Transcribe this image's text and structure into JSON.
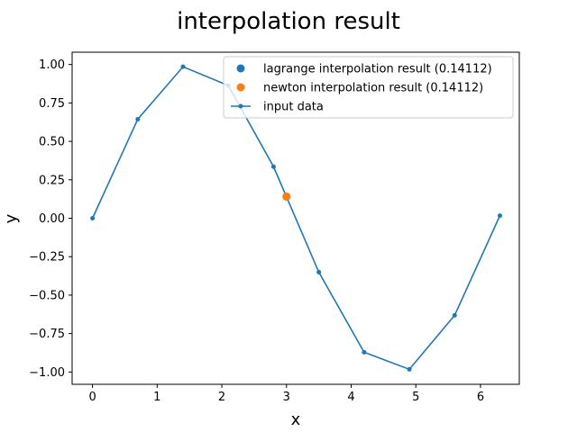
{
  "chart_data": {
    "type": "line",
    "title": "interpolation result",
    "xlabel": "x",
    "ylabel": "y",
    "xlim": [
      -0.315,
      6.6
    ],
    "ylim": [
      -1.08,
      1.08
    ],
    "xticks": [
      0,
      1,
      2,
      3,
      4,
      5,
      6
    ],
    "yticks": [
      -1.0,
      -0.75,
      -0.5,
      -0.25,
      0.0,
      0.25,
      0.5,
      0.75,
      1.0
    ],
    "xtick_labels": [
      "0",
      "1",
      "2",
      "3",
      "4",
      "5",
      "6"
    ],
    "ytick_labels": [
      "−1.00",
      "−0.75",
      "−0.50",
      "−0.25",
      "0.00",
      "0.25",
      "0.50",
      "0.75",
      "1.00"
    ],
    "grid": false,
    "legend_position": "top-right",
    "series": [
      {
        "name": "input data",
        "kind": "line",
        "color": "#1f77b4",
        "marker": "dot",
        "x": [
          0.0,
          0.7,
          1.4,
          2.1,
          2.8,
          3.5,
          4.2,
          4.9,
          5.6,
          6.3
        ],
        "y": [
          0.0,
          0.6442,
          0.9854,
          0.8632,
          0.335,
          -0.3508,
          -0.8716,
          -0.9825,
          -0.6313,
          0.0168
        ]
      },
      {
        "name": "lagrange interpolation result (0.14112)",
        "kind": "scatter",
        "color": "#1f77b4",
        "x": [
          3.0
        ],
        "y": [
          0.14112
        ]
      },
      {
        "name": "newton interpolation result (0.14112)",
        "kind": "scatter",
        "color": "#ff7f0e",
        "x": [
          3.0
        ],
        "y": [
          0.14112
        ]
      }
    ]
  }
}
